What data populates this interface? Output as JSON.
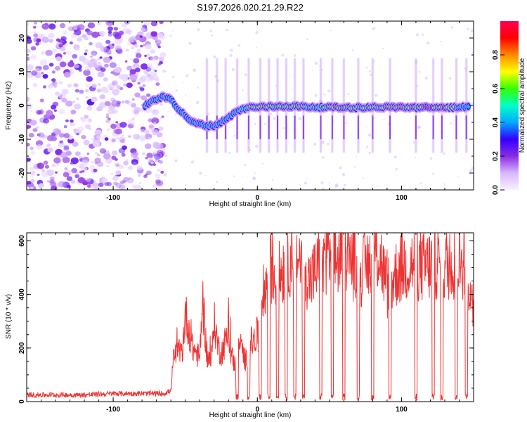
{
  "title": "S197.2026.020.21.29.R22",
  "colors": {
    "snr_line": "#ee3333",
    "frame": "#000000",
    "colormap": [
      "#f8f0ff",
      "#d8b8ff",
      "#8a2be2",
      "#3300ff",
      "#00aaff",
      "#00ffc8",
      "#33ff00",
      "#ffff00",
      "#ff8800",
      "#ff0000",
      "#ff0055"
    ]
  },
  "chart_data": [
    {
      "type": "heatmap",
      "name": "spectrogram",
      "xlabel": "Height of straight line (km)",
      "ylabel": "Frequency (Hz)",
      "xlim": [
        -160,
        150
      ],
      "ylim": [
        -25,
        25
      ],
      "xticks": [
        -100,
        0,
        100
      ],
      "yticks": [
        -20,
        -10,
        0,
        10,
        20
      ],
      "colorbar": {
        "label": "Normalized spectral amplitude",
        "range": [
          0,
          1
        ],
        "ticks": [
          "0.0",
          "0.2",
          "0.4",
          "0.6",
          "0.8"
        ]
      },
      "noise_region_x": [
        -160,
        -70
      ],
      "ridge": {
        "x": [
          -78,
          -72,
          -66,
          -60,
          -55,
          -50,
          -45,
          -40,
          -35,
          -30,
          -25,
          -20,
          -15,
          -10,
          -5,
          0,
          10,
          20,
          30,
          40,
          50,
          60,
          70,
          80,
          90,
          100,
          110,
          120,
          130,
          140,
          147
        ],
        "freq": [
          0,
          1.5,
          2.5,
          2,
          -1,
          -3,
          -5,
          -5.5,
          -6,
          -6,
          -5,
          -3.5,
          -2,
          -1,
          -0.5,
          -0.5,
          -0.3,
          -0.2,
          -0.3,
          -0.5,
          -0.5,
          -0.6,
          -0.6,
          -0.5,
          -0.5,
          -0.5,
          -0.6,
          -0.6,
          -0.6,
          -0.5,
          -0.5
        ],
        "amplitude": [
          0.3,
          0.35,
          0.4,
          0.35,
          0.35,
          0.3,
          0.35,
          0.35,
          0.35,
          0.3,
          0.35,
          0.4,
          0.45,
          0.55,
          0.7,
          0.85,
          0.8,
          0.7,
          0.75,
          0.6,
          0.75,
          0.8,
          0.65,
          0.7,
          0.8,
          0.85,
          0.75,
          0.95,
          0.95,
          0.55,
          0.4
        ]
      }
    },
    {
      "type": "line",
      "name": "snr",
      "xlabel": "Height of straight line (km)",
      "ylabel": "SNR (10 * v/v)",
      "xlim": [
        -160,
        150
      ],
      "ylim": [
        0,
        630
      ],
      "xticks": [
        -100,
        0,
        100
      ],
      "yticks": [
        0,
        200,
        400,
        600
      ],
      "series": [
        {
          "name": "SNR",
          "x": [
            -160,
            -140,
            -120,
            -100,
            -80,
            -65,
            -60,
            -58,
            -55,
            -52,
            -50,
            -47,
            -45,
            -42,
            -40,
            -38,
            -35,
            -32,
            -30,
            -27,
            -25,
            -22,
            -20,
            -18,
            -15,
            -12,
            -10,
            -8,
            -5,
            -3,
            0,
            2,
            4,
            6,
            8,
            10,
            13,
            16,
            20,
            24,
            28,
            32,
            36,
            40,
            45,
            50,
            55,
            60,
            65,
            70,
            75,
            80,
            85,
            90,
            95,
            100,
            105,
            110,
            115,
            120,
            125,
            130,
            135,
            140,
            145,
            148
          ],
          "y": [
            25,
            25,
            25,
            30,
            30,
            30,
            40,
            170,
            180,
            190,
            330,
            260,
            200,
            180,
            160,
            390,
            170,
            150,
            300,
            200,
            180,
            230,
            250,
            170,
            130,
            220,
            180,
            150,
            220,
            220,
            250,
            210,
            400,
            430,
            480,
            510,
            450,
            480,
            520,
            540,
            540,
            510,
            450,
            480,
            540,
            560,
            520,
            580,
            530,
            480,
            500,
            560,
            550,
            420,
            470,
            500,
            510,
            520,
            500,
            510,
            520,
            510,
            520,
            510,
            540,
            350
          ],
          "dropouts_x": [
            -14,
            -6,
            2,
            8,
            14,
            20,
            26,
            32,
            44,
            52,
            60,
            70,
            80,
            92,
            110,
            122,
            128,
            138,
            145
          ]
        }
      ]
    }
  ]
}
